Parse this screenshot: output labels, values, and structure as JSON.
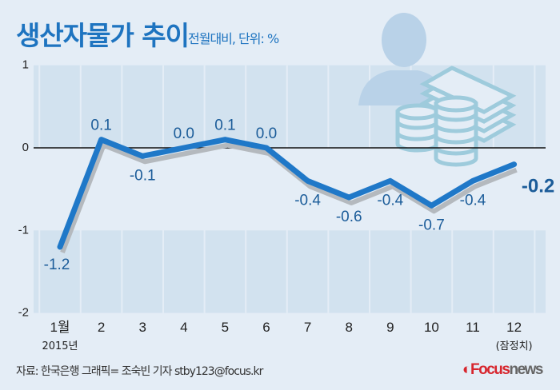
{
  "title": "생산자물가 추이",
  "subtitle": "전월대비, 단위: %",
  "footer": "자료: 한국은행  그래픽= 조숙빈 기자 stby123@focus.kr",
  "logo": {
    "part1": "Focus",
    "part2": "news"
  },
  "colors": {
    "line": "#1f78c8",
    "shadow": "#b4b9be",
    "label": "#1b5c99",
    "band": "#d2e2ef",
    "background": "#e4edf6"
  },
  "decoration_icons": [
    "person-silhouette-icon",
    "money-stack-icon",
    "coin-stack-icon"
  ],
  "chart_data": {
    "type": "line",
    "title": "생산자물가 추이",
    "categories": [
      "1월",
      "2",
      "3",
      "4",
      "5",
      "6",
      "7",
      "8",
      "9",
      "10",
      "11",
      "12"
    ],
    "category_sublabels": {
      "first": "2015년",
      "last": "(잠정치)"
    },
    "values": [
      -1.2,
      0.1,
      -0.1,
      0.0,
      0.1,
      0.0,
      -0.4,
      -0.6,
      -0.4,
      -0.7,
      -0.4,
      -0.2
    ],
    "data_labels": [
      "-1.2",
      "0.1",
      "-0.1",
      "0.0",
      "0.1",
      "0.0",
      "-0.4",
      "-0.6",
      "-0.4",
      "-0.7",
      "-0.4",
      "-0.2"
    ],
    "yticks": [
      "1",
      "0",
      "-1",
      "-2"
    ],
    "ylim": [
      -2,
      1
    ],
    "grid": "alternating horizontal bands, vertical column separators"
  }
}
